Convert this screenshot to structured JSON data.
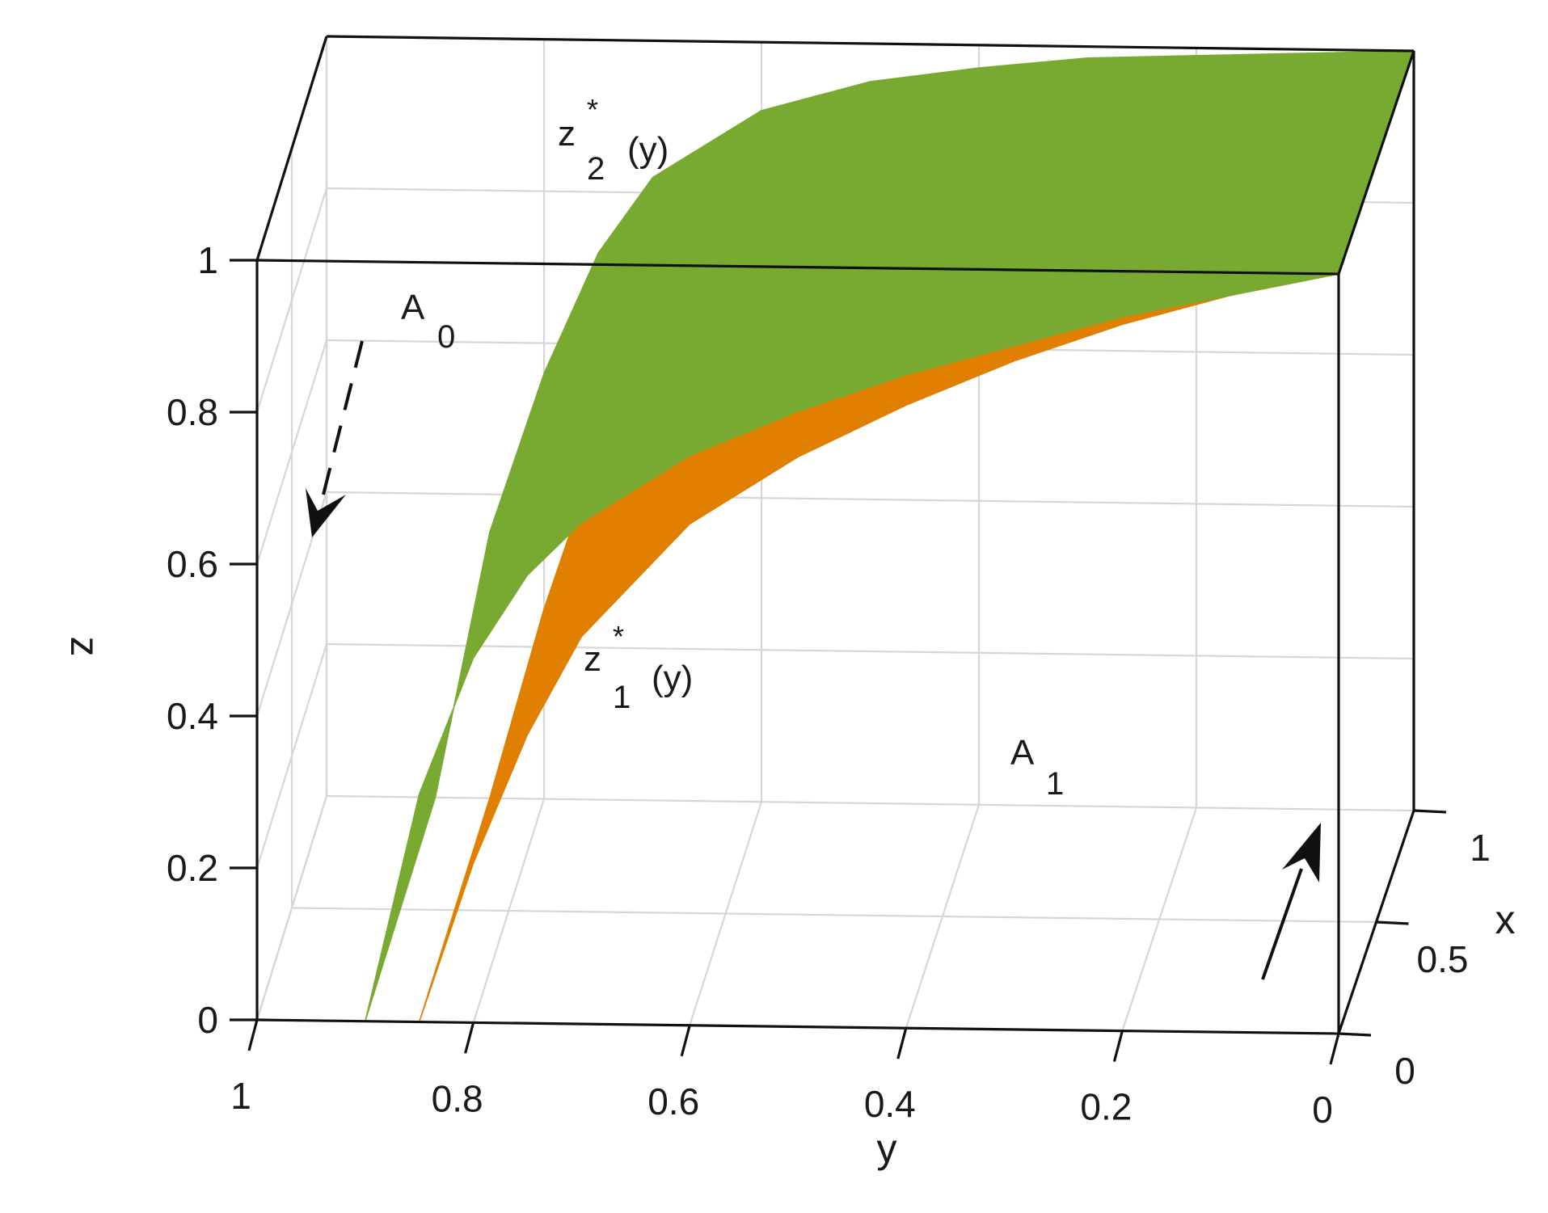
{
  "chart_data": {
    "type": "3d-surface",
    "axes": {
      "x": {
        "label": "x",
        "ticks": [
          "0",
          "0.5",
          "1"
        ],
        "range": [
          0,
          1
        ]
      },
      "y": {
        "label": "y",
        "ticks": [
          "1",
          "0.8",
          "0.6",
          "0.4",
          "0.2",
          "0"
        ],
        "range": [
          1,
          0
        ]
      },
      "z": {
        "label": "z",
        "ticks": [
          "0",
          "0.2",
          "0.4",
          "0.6",
          "0.8",
          "1"
        ],
        "range": [
          0,
          1
        ]
      }
    },
    "grid": true,
    "surfaces": [
      {
        "label_base": "z",
        "label_sub": "2",
        "label_star": "*",
        "label_arg": "(y)",
        "color": "#78aa32",
        "front_y": [
          0.9,
          0.85,
          0.8,
          0.75,
          0.7,
          0.6,
          0.5,
          0.4,
          0.3,
          0.2,
          0.1,
          0.0
        ],
        "front_z": [
          0.0,
          0.3,
          0.48,
          0.59,
          0.66,
          0.75,
          0.81,
          0.86,
          0.9,
          0.94,
          0.97,
          1.0
        ],
        "back_y": [
          0.9,
          0.85,
          0.8,
          0.75,
          0.7,
          0.6,
          0.5,
          0.4,
          0.3,
          0.2,
          0.1,
          0.0
        ],
        "back_z": [
          0.0,
          0.35,
          0.56,
          0.72,
          0.82,
          0.91,
          0.95,
          0.97,
          0.985,
          0.99,
          0.995,
          1.0
        ]
      },
      {
        "label_base": "z",
        "label_sub": "1",
        "label_star": "*",
        "label_arg": "(y)",
        "color": "#e07f00",
        "front_y": [
          0.85,
          0.8,
          0.75,
          0.7,
          0.6,
          0.5,
          0.4,
          0.3,
          0.2,
          0.1,
          0.0
        ],
        "front_z": [
          0.0,
          0.21,
          0.38,
          0.51,
          0.66,
          0.75,
          0.82,
          0.88,
          0.93,
          0.97,
          1.0
        ],
        "back_y": [
          0.85,
          0.8,
          0.75,
          0.7,
          0.6,
          0.5,
          0.4,
          0.3,
          0.2,
          0.1,
          0.0
        ],
        "back_z": [
          0.0,
          0.25,
          0.46,
          0.62,
          0.76,
          0.84,
          0.89,
          0.93,
          0.96,
          0.98,
          1.0
        ]
      }
    ],
    "annotations": [
      {
        "base": "A",
        "sub": "0"
      },
      {
        "base": "A",
        "sub": "1"
      }
    ]
  }
}
